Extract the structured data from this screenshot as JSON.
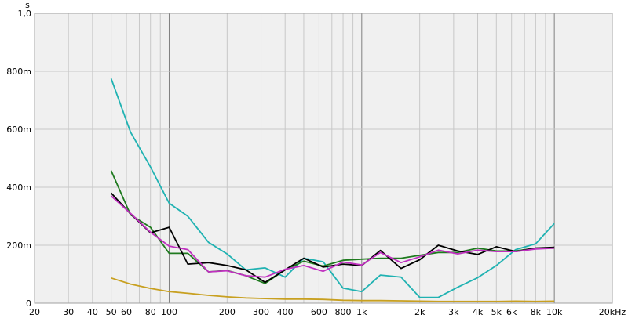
{
  "chart_data": {
    "type": "line",
    "title": "",
    "xlabel": "",
    "ylabel": "",
    "y_unit": "s",
    "x_scale": "log",
    "xlim": [
      20,
      20000
    ],
    "ylim": [
      0,
      1.0
    ],
    "grid": true,
    "legend": "none",
    "background": "#f0f0f0",
    "x_ticks": [
      {
        "v": 20,
        "label": "20"
      },
      {
        "v": 30,
        "label": "30"
      },
      {
        "v": 40,
        "label": "40"
      },
      {
        "v": 50,
        "label": "50"
      },
      {
        "v": 60,
        "label": "60"
      },
      {
        "v": 80,
        "label": "80"
      },
      {
        "v": 100,
        "label": "100"
      },
      {
        "v": 200,
        "label": "200"
      },
      {
        "v": 300,
        "label": "300"
      },
      {
        "v": 400,
        "label": "400"
      },
      {
        "v": 600,
        "label": "600"
      },
      {
        "v": 800,
        "label": "800"
      },
      {
        "v": 1000,
        "label": "1k"
      },
      {
        "v": 2000,
        "label": "2k"
      },
      {
        "v": 3000,
        "label": "3k"
      },
      {
        "v": 4000,
        "label": "4k"
      },
      {
        "v": 5000,
        "label": "5k"
      },
      {
        "v": 6000,
        "label": "6k"
      },
      {
        "v": 8000,
        "label": "8k"
      },
      {
        "v": 10000,
        "label": "10k"
      },
      {
        "v": 20000,
        "label": "20kHz"
      }
    ],
    "y_ticks": [
      {
        "v": 0,
        "label": "0"
      },
      {
        "v": 0.2,
        "label": "200m"
      },
      {
        "v": 0.4,
        "label": "400m"
      },
      {
        "v": 0.6,
        "label": "600m"
      },
      {
        "v": 0.8,
        "label": "800m"
      },
      {
        "v": 1.0,
        "label": "1,0"
      }
    ],
    "x": [
      50,
      63,
      80,
      100,
      125,
      160,
      200,
      250,
      315,
      400,
      500,
      630,
      800,
      1000,
      1250,
      1600,
      2000,
      2500,
      3150,
      4000,
      5000,
      6300,
      8000,
      10000
    ],
    "series": [
      {
        "color": "#20b2b2",
        "values": [
          0.775,
          0.59,
          0.47,
          0.345,
          0.3,
          0.21,
          0.17,
          0.115,
          0.122,
          0.09,
          0.155,
          0.143,
          0.052,
          0.04,
          0.097,
          0.09,
          0.02,
          0.02,
          0.055,
          0.088,
          0.13,
          0.185,
          0.205,
          0.275
        ]
      },
      {
        "color": "#1f7a1f",
        "values": [
          0.457,
          0.305,
          0.262,
          0.172,
          0.172,
          0.108,
          0.113,
          0.095,
          0.068,
          0.115,
          0.145,
          0.128,
          0.148,
          0.152,
          0.155,
          0.155,
          0.165,
          0.175,
          0.175,
          0.19,
          0.18,
          0.18,
          0.19,
          0.19
        ]
      },
      {
        "color": "#000000",
        "values": [
          0.38,
          0.308,
          0.243,
          0.262,
          0.135,
          0.14,
          0.13,
          0.115,
          0.072,
          0.115,
          0.155,
          0.125,
          0.135,
          0.13,
          0.182,
          0.12,
          0.15,
          0.2,
          0.18,
          0.168,
          0.195,
          0.178,
          0.19,
          0.193
        ]
      },
      {
        "color": "#c030c0",
        "values": [
          0.37,
          0.31,
          0.245,
          0.197,
          0.185,
          0.108,
          0.112,
          0.095,
          0.09,
          0.117,
          0.13,
          0.11,
          0.142,
          0.132,
          0.175,
          0.14,
          0.16,
          0.183,
          0.17,
          0.183,
          0.178,
          0.178,
          0.187,
          0.19
        ]
      },
      {
        "color": "#c8a020",
        "values": [
          0.087,
          0.066,
          0.051,
          0.04,
          0.034,
          0.027,
          0.022,
          0.018,
          0.016,
          0.014,
          0.014,
          0.013,
          0.01,
          0.009,
          0.009,
          0.008,
          0.007,
          0.006,
          0.006,
          0.006,
          0.006,
          0.007,
          0.006,
          0.007
        ]
      }
    ]
  }
}
